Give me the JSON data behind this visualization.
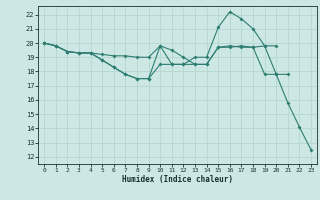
{
  "xlabel": "Humidex (Indice chaleur)",
  "xlim": [
    -0.5,
    23.5
  ],
  "ylim": [
    11.5,
    22.6
  ],
  "yticks": [
    12,
    13,
    14,
    15,
    16,
    17,
    18,
    19,
    20,
    21,
    22
  ],
  "xticks": [
    0,
    1,
    2,
    3,
    4,
    5,
    6,
    7,
    8,
    9,
    10,
    11,
    12,
    13,
    14,
    15,
    16,
    17,
    18,
    19,
    20,
    21,
    22,
    23
  ],
  "bg_color": "#cde8e4",
  "grid_color": "#b8d8d4",
  "line_color": "#2e7d72",
  "lines": [
    {
      "x": [
        0,
        1,
        2,
        3,
        4,
        5,
        6,
        7,
        8,
        9,
        10,
        11,
        12,
        13,
        14,
        15,
        16,
        17,
        18,
        19,
        20
      ],
      "y": [
        20,
        19.8,
        19.4,
        19.3,
        19.3,
        19.2,
        19.1,
        19.1,
        19.0,
        19.0,
        19.8,
        19.5,
        19.0,
        18.5,
        18.5,
        19.7,
        19.7,
        19.8,
        19.7,
        19.8,
        19.8
      ]
    },
    {
      "x": [
        0,
        1,
        2,
        3,
        4,
        5,
        6,
        7,
        8,
        9,
        10,
        11,
        12,
        13,
        14,
        15,
        16,
        17,
        18,
        19,
        20,
        21
      ],
      "y": [
        20,
        19.8,
        19.4,
        19.3,
        19.3,
        18.8,
        18.3,
        17.8,
        17.5,
        17.5,
        18.5,
        18.5,
        18.5,
        18.5,
        18.5,
        19.7,
        19.8,
        19.7,
        19.7,
        17.8,
        17.8,
        17.8
      ]
    },
    {
      "x": [
        0,
        1,
        2,
        3,
        4,
        5,
        6,
        7,
        8,
        9,
        10,
        11,
        12,
        13,
        14,
        15,
        16,
        17,
        18,
        19,
        20,
        21,
        22,
        23
      ],
      "y": [
        20,
        19.8,
        19.4,
        19.3,
        19.3,
        18.8,
        18.3,
        17.8,
        17.5,
        17.5,
        19.8,
        18.5,
        18.5,
        19.0,
        19.0,
        21.1,
        22.2,
        21.7,
        21.0,
        19.8,
        17.8,
        15.8,
        14.1,
        12.5
      ]
    }
  ]
}
